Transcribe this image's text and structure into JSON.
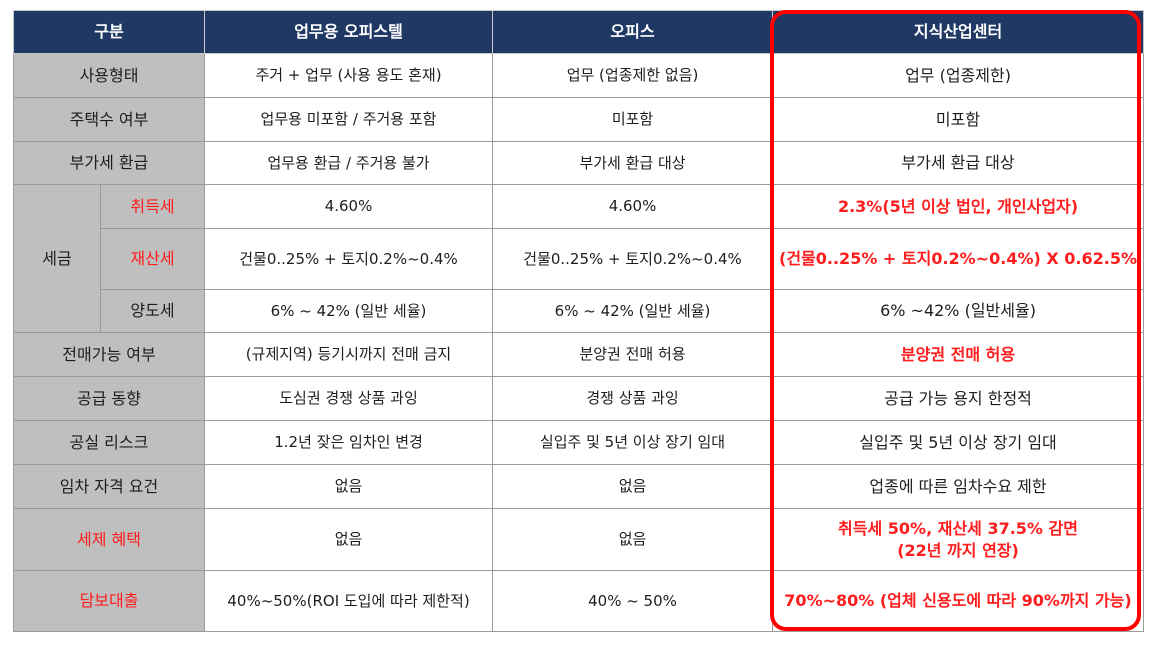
{
  "headers": [
    "구분",
    "업무용 오피스텔",
    "오피스",
    "지식산업센터"
  ],
  "rows": {
    "usage": {
      "label": "사용형태",
      "c1": "주거 + 업무 (사용 용도 혼재)",
      "c2": "업무 (업종제한 없음)",
      "c3": "업무 (업종제한)"
    },
    "housing": {
      "label": "주택수 여부",
      "c1": "업무용 미포함 / 주거용 포함",
      "c2": "미포함",
      "c3": "미포함"
    },
    "vat": {
      "label": "부가세 환급",
      "c1": "업무용 환급 / 주거용 불가",
      "c2": "부가세 환급 대상",
      "c3": "부가세 환급 대상"
    },
    "tax": {
      "group": "세금",
      "acq": {
        "label": "취득세",
        "c1": "4.60%",
        "c2": "4.60%",
        "c3": "2.3%(5년 이상 법인, 개인사업자)"
      },
      "prop": {
        "label": "재산세",
        "c1": "건물0..25% + 토지0.2%~0.4%",
        "c2": "건물0..25% + 토지0.2%~0.4%",
        "c3": "(건물0..25% + 토지0.2%~0.4%) X 0.62.5%"
      },
      "transfer": {
        "label": "양도세",
        "c1": "6% ~ 42% (일반 세율)",
        "c2": "6% ~ 42% (일반 세율)",
        "c3": "6% ~42% (일반세율)"
      }
    },
    "resale": {
      "label": "전매가능 여부",
      "c1": "(규제지역) 등기시까지 전매 금지",
      "c2": "분양권 전매 허용",
      "c3": "분양권 전매 허용"
    },
    "supply": {
      "label": "공급 동향",
      "c1": "도심권 경쟁 상품 과잉",
      "c2": "경쟁 상품 과잉",
      "c3": "공급 가능 용지 한정적"
    },
    "vacancy": {
      "label": "공실 리스크",
      "c1": "1.2년 잦은 임차인 변경",
      "c2": "실입주 및 5년 이상 장기 임대",
      "c3": "실입주 및 5년 이상 장기 임대"
    },
    "tenant": {
      "label": "임차 자격 요건",
      "c1": "없음",
      "c2": "없음",
      "c3": "업종에 따른 임차수요 제한"
    },
    "benefit": {
      "label": "세제 혜택",
      "c1": "없음",
      "c2": "없음",
      "c3_line1": "취득세 50%, 재산세 37.5% 감면",
      "c3_line2": "(22년 까지 연장)"
    },
    "loan": {
      "label": "담보대출",
      "c1": "40%~50%(ROI 도입에 따라 제한적)",
      "c2": "40% ~ 50%",
      "c3": "70%~80% (업체 신용도에 따라 90%까지 가능)"
    }
  },
  "colors": {
    "header_bg": "#1f3864",
    "label_bg": "#bfbfbf",
    "highlight_red": "#ff0000"
  }
}
